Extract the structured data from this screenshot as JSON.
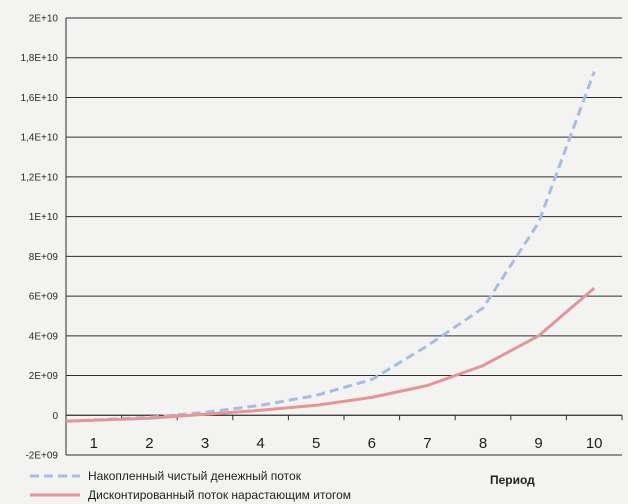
{
  "chart_data": {
    "type": "line",
    "x": [
      1,
      2,
      3,
      4,
      5,
      6,
      7,
      8,
      9,
      10
    ],
    "xlabel": "Период",
    "ylabel": "",
    "title": "",
    "ylim": [
      -2000000000,
      20000000000
    ],
    "yticks": [
      "-2E+09",
      "0",
      "2E+09",
      "4E+09",
      "6E+09",
      "8E+09",
      "1E+10",
      "1,2E+10",
      "1,4E+10",
      "1,6E+10",
      "1,8E+10",
      "2E+10"
    ],
    "grid": true,
    "legend_position": "bottom",
    "series": [
      {
        "name": "Накопленный чистый денежный поток",
        "style": "dashed",
        "color": "#a9bde3",
        "values": [
          -300000000,
          -100000000,
          150000000,
          500000000,
          1000000000,
          1800000000,
          3500000000,
          5400000000,
          9700000000,
          17300000000
        ]
      },
      {
        "name": "Дисконтированный поток нарастающим итогом",
        "style": "solid",
        "color": "#e59595",
        "values": [
          -300000000,
          -150000000,
          50000000,
          250000000,
          500000000,
          900000000,
          1500000000,
          2500000000,
          4000000000,
          6400000000
        ]
      }
    ]
  }
}
